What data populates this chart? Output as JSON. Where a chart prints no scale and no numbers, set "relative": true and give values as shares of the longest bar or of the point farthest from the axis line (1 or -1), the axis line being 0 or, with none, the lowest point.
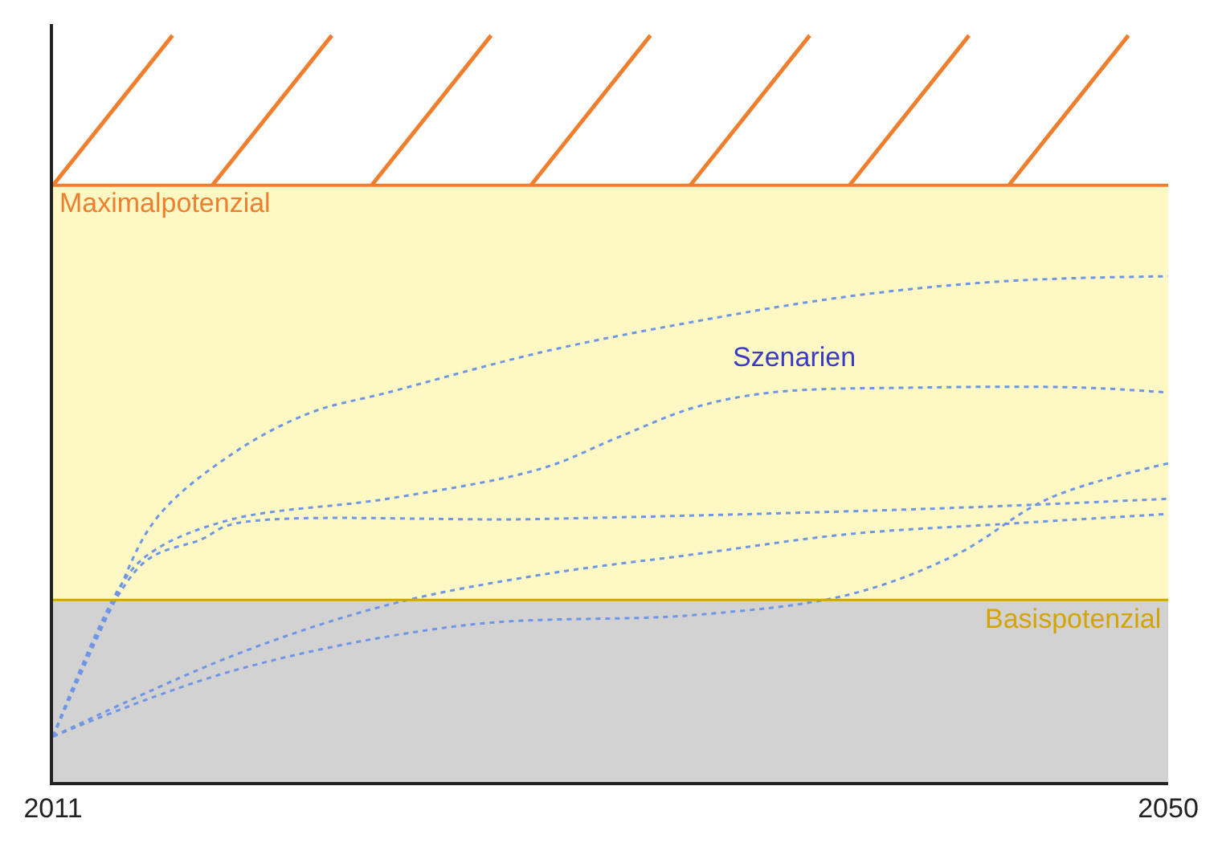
{
  "chart_data": {
    "type": "line",
    "relative": true,
    "line_style": "dotted",
    "marker": "none",
    "grid": false,
    "xlim": [
      2011,
      2050
    ],
    "xticks": [
      2011,
      2050
    ],
    "series": [
      {
        "color": "#6f96e6",
        "x": [
          2011,
          2013,
          2014.6,
          2017.3,
          2020,
          2022.7,
          2028.1,
          2033.4,
          2038.8,
          2044.2,
          2050
        ],
        "values": [
          0.09,
          0.34,
          0.52,
          0.65,
          0.73,
          0.77,
          0.85,
          0.91,
          0.96,
          0.99,
          1.0
        ]
      },
      {
        "color": "#6f96e6",
        "x": [
          2011,
          2013.5,
          2014.6,
          2017.3,
          2022.7,
          2028.1,
          2030.7,
          2033.4,
          2036.1,
          2041.5,
          2046.9,
          2050
        ],
        "values": [
          0.09,
          0.4,
          0.46,
          0.52,
          0.56,
          0.62,
          0.68,
          0.74,
          0.77,
          0.78,
          0.78,
          0.77
        ]
      },
      {
        "color": "#6f96e6",
        "x": [
          2011,
          2014.1,
          2016.2,
          2017.3,
          2028.1,
          2041.5,
          2050
        ],
        "values": [
          0.09,
          0.43,
          0.48,
          0.51,
          0.52,
          0.54,
          0.56
        ]
      },
      {
        "color": "#6f96e6",
        "x": [
          2011,
          2017.3,
          2022.7,
          2028.1,
          2033.4,
          2038.8,
          2044.2,
          2050
        ],
        "values": [
          0.09,
          0.25,
          0.35,
          0.41,
          0.45,
          0.49,
          0.51,
          0.53
        ]
      },
      {
        "color": "#6f96e6",
        "x": [
          2011,
          2017.3,
          2025.4,
          2033.4,
          2038.8,
          2042.6,
          2045.8,
          2050
        ],
        "values": [
          0.09,
          0.22,
          0.31,
          0.33,
          0.37,
          0.45,
          0.56,
          0.63
        ]
      }
    ],
    "ref_lines": [
      {
        "axis": "y",
        "value": 1.18,
        "label": "Maximalpotenzial",
        "color": "#ef7f2e"
      },
      {
        "axis": "y",
        "value": 0.36,
        "label": "Basispotenzial",
        "color": "#d4a400"
      }
    ],
    "bands": [
      {
        "axis": "y",
        "from": 0,
        "to": 0.36,
        "color": "#d2d2d2"
      },
      {
        "axis": "y",
        "from": 0.36,
        "to": 1.18,
        "color": "#fdf8c4"
      }
    ],
    "annotations": [
      "Szenarien"
    ]
  }
}
